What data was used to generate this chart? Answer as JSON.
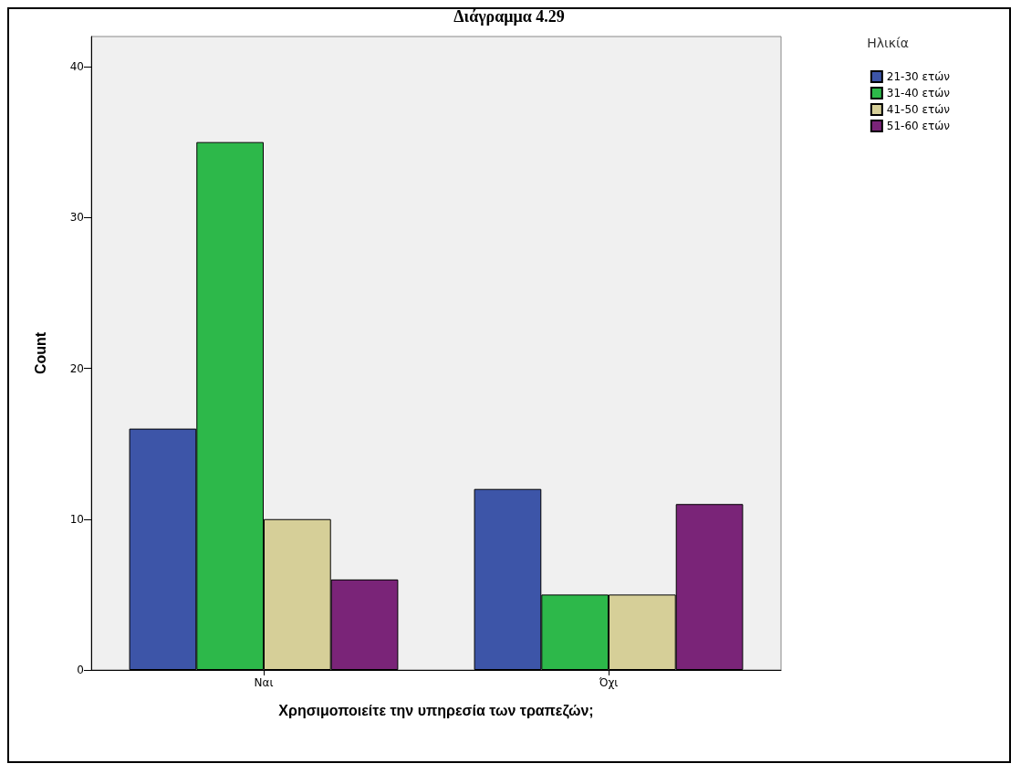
{
  "chart_data": {
    "type": "bar",
    "title": "Διάγραμμα 4.29",
    "xlabel": "Χρησιμοποιείτε την υπηρεσία των τραπεζών;",
    "ylabel": "Count",
    "legend_title": "Ηλικία",
    "categories": [
      "Ναι",
      "Όχι"
    ],
    "series": [
      {
        "name": "21-30 ετών",
        "color": "#3d55a8",
        "values": [
          16,
          12
        ]
      },
      {
        "name": "31-40 ετών",
        "color": "#2db84a",
        "values": [
          35,
          5
        ]
      },
      {
        "name": "41-50 ετών",
        "color": "#d6cf98",
        "values": [
          10,
          5
        ]
      },
      {
        "name": "51-60 ετών",
        "color": "#7a2478",
        "values": [
          6,
          11
        ]
      }
    ],
    "ylim": [
      0,
      42
    ],
    "yticks": [
      0,
      10,
      20,
      30,
      40
    ],
    "grid": false,
    "legend": "top right"
  }
}
